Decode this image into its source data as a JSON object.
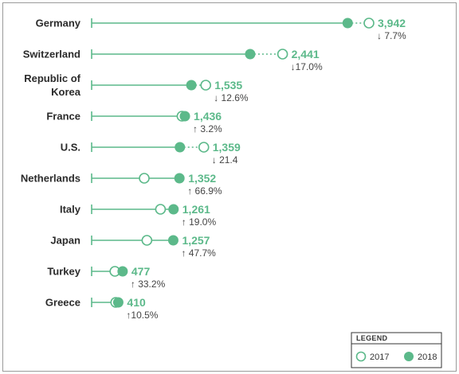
{
  "colors": {
    "accent": "#5cb98a",
    "text": "#2b2b2b",
    "muted": "#444444",
    "border": "#9a9a9a"
  },
  "legend": {
    "title": "LEGEND",
    "items": [
      {
        "label": "2017",
        "marker": "hollow-circle"
      },
      {
        "label": "2018",
        "marker": "filled-circle"
      }
    ]
  },
  "chart_data": {
    "type": "dot-plot",
    "series": [
      {
        "name": "2017"
      },
      {
        "name": "2018"
      }
    ],
    "rows": [
      {
        "country": [
          "Germany"
        ],
        "v2017": 4270,
        "v2018": 3942,
        "value_label": "3,942",
        "change_label": "↓ 7.7%"
      },
      {
        "country": [
          "Switzerland"
        ],
        "v2017": 2940,
        "v2018": 2441,
        "value_label": "2,441",
        "change_label": "↓17.0%"
      },
      {
        "country": [
          "Republic of",
          "Korea"
        ],
        "v2017": 1757,
        "v2018": 1535,
        "value_label": "1,535",
        "change_label": "↓ 12.6%"
      },
      {
        "country": [
          "France"
        ],
        "v2017": 1391,
        "v2018": 1436,
        "value_label": "1,436",
        "change_label": "↑ 3.2%"
      },
      {
        "country": [
          "U.S."
        ],
        "v2017": 1727,
        "v2018": 1359,
        "value_label": "1,359",
        "change_label": "↓ 21.4"
      },
      {
        "country": [
          "Netherlands"
        ],
        "v2017": 810,
        "v2018": 1352,
        "value_label": "1,352",
        "change_label": "↑ 66.9%"
      },
      {
        "country": [
          "Italy"
        ],
        "v2017": 1060,
        "v2018": 1261,
        "value_label": "1,261",
        "change_label": "↑ 19.0%"
      },
      {
        "country": [
          "Japan"
        ],
        "v2017": 851,
        "v2018": 1257,
        "value_label": "1,257",
        "change_label": "↑ 47.7%"
      },
      {
        "country": [
          "Turkey"
        ],
        "v2017": 358,
        "v2018": 477,
        "value_label": "477",
        "change_label": "↑ 33.2%"
      },
      {
        "country": [
          "Greece"
        ],
        "v2017": 371,
        "v2018": 410,
        "value_label": "410",
        "change_label": "↑10.5%"
      }
    ]
  }
}
